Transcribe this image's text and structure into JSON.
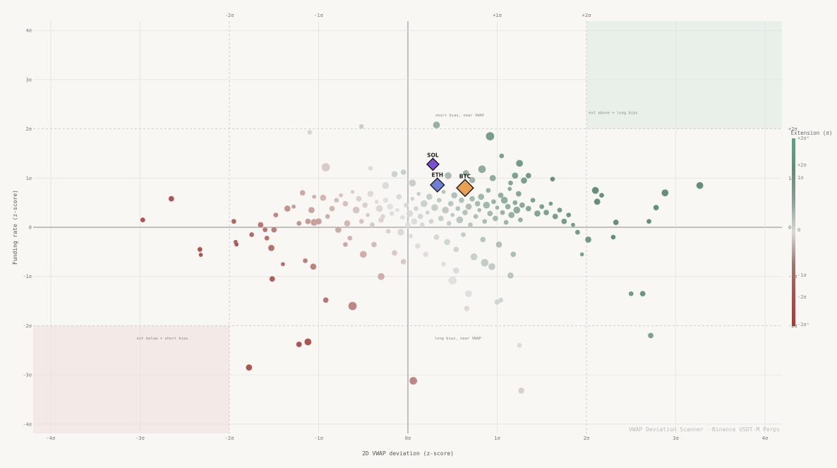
{
  "chart_data": {
    "type": "scatter",
    "xlabel": "2D VWAP deviation (z-score)",
    "ylabel": "Funding rate (z-score)",
    "xlim": [
      -4.2,
      4.2
    ],
    "ylim": [
      -4.2,
      4.2
    ],
    "grid": true,
    "x_tick_labels": [
      "-4σ",
      "-3σ",
      "-2σ",
      "-1σ",
      "0σ",
      "1σ",
      "2σ",
      "3σ",
      "4σ"
    ],
    "y_tick_labels": [
      "4σ",
      "3σ",
      "2σ",
      "1σ",
      "0",
      "-1σ",
      "-2σ",
      "-3σ",
      "-4σ"
    ],
    "top_tick_labels": [
      "-2σ",
      "-1σ",
      "+1σ",
      "+2σ"
    ],
    "right_tick_labels": [
      "+2σ",
      "1σ",
      "0",
      "-1σ",
      "-2σ"
    ],
    "zones": [
      {
        "label": "ext above + long bias",
        "x": [
          2.0,
          4.2
        ],
        "y": [
          2.0,
          4.2
        ],
        "color": "#e9f0ea"
      },
      {
        "label": "ext below + short bias",
        "x": [
          -4.2,
          -2.0
        ],
        "y": [
          -4.2,
          -2.0
        ],
        "color": "#f3e9e7"
      },
      {
        "label": "short bias, near VWAP",
        "x": [
          0.0,
          2.0
        ],
        "y": [
          2.0,
          4.2
        ],
        "color": null
      },
      {
        "label": "long bias, near VWAP",
        "x": [
          0.0,
          2.0
        ],
        "y": [
          -4.2,
          -2.0
        ],
        "color": null
      }
    ],
    "colorbar": {
      "title": "Extension (σ)",
      "labels": [
        "+2σ²",
        "+2σ",
        "1σ",
        "0",
        "-1σ",
        "-2σ",
        "-2σ²"
      ],
      "colors": [
        "#5aa684",
        "#5f8e78",
        "#8c9e96",
        "#d8d8d8",
        "#9a7a76",
        "#a84f4c",
        "#a83b34"
      ]
    },
    "highlights": [
      {
        "name": "SOL",
        "x": 0.28,
        "y": 1.28,
        "color": "#7d4fd6",
        "size": 1.0
      },
      {
        "name": "ETH",
        "x": 0.33,
        "y": 0.86,
        "color": "#6f7ed8",
        "size": 1.15
      },
      {
        "name": "BTC",
        "x": 0.64,
        "y": 0.8,
        "color": "#e9a050",
        "size": 1.4
      }
    ],
    "points": [
      {
        "x": -2.97,
        "y": 0.15,
        "s": 3.5
      },
      {
        "x": -2.65,
        "y": 0.58,
        "s": 4
      },
      {
        "x": -2.33,
        "y": -0.45,
        "s": 3.5
      },
      {
        "x": -2.32,
        "y": -0.56,
        "s": 3
      },
      {
        "x": -1.95,
        "y": 0.12,
        "s": 3.5
      },
      {
        "x": -1.93,
        "y": -0.3,
        "s": 3
      },
      {
        "x": -1.92,
        "y": -0.35,
        "s": 3
      },
      {
        "x": -1.75,
        "y": -0.15,
        "s": 3.5
      },
      {
        "x": -1.78,
        "y": -2.85,
        "s": 4.5
      },
      {
        "x": -1.65,
        "y": 0.05,
        "s": 4
      },
      {
        "x": -1.58,
        "y": -0.22,
        "s": 3.5
      },
      {
        "x": -1.53,
        "y": -0.42,
        "s": 4.5
      },
      {
        "x": -1.5,
        "y": -0.05,
        "s": 4
      },
      {
        "x": -1.52,
        "y": -1.05,
        "s": 4
      },
      {
        "x": -1.48,
        "y": 0.25,
        "s": 3.5
      },
      {
        "x": -1.4,
        "y": -0.75,
        "s": 3
      },
      {
        "x": -1.35,
        "y": 0.38,
        "s": 4.5
      },
      {
        "x": -1.28,
        "y": 0.42,
        "s": 3
      },
      {
        "x": -1.22,
        "y": 0.08,
        "s": 3.5
      },
      {
        "x": -1.18,
        "y": 0.7,
        "s": 4
      },
      {
        "x": -1.15,
        "y": -0.68,
        "s": 3.5
      },
      {
        "x": -1.12,
        "y": 0.12,
        "s": 4
      },
      {
        "x": -1.08,
        "y": 0.35,
        "s": 4.5
      },
      {
        "x": -1.05,
        "y": 0.62,
        "s": 3
      },
      {
        "x": -1.05,
        "y": 0.1,
        "s": 5
      },
      {
        "x": -1.0,
        "y": 0.12,
        "s": 4.5
      },
      {
        "x": -1.06,
        "y": -0.8,
        "s": 4.5
      },
      {
        "x": -1.1,
        "y": 1.93,
        "s": 3.5
      },
      {
        "x": -1.12,
        "y": -2.33,
        "s": 5
      },
      {
        "x": -1.22,
        "y": -2.38,
        "s": 4
      },
      {
        "x": -0.92,
        "y": 1.22,
        "s": 6
      },
      {
        "x": -0.95,
        "y": 0.6,
        "s": 4.5
      },
      {
        "x": -0.9,
        "y": 0.22,
        "s": 3.5
      },
      {
        "x": -0.85,
        "y": 0.38,
        "s": 4
      },
      {
        "x": -0.8,
        "y": 0.55,
        "s": 3.5
      },
      {
        "x": -0.78,
        "y": -0.05,
        "s": 4.5
      },
      {
        "x": -0.75,
        "y": 0.65,
        "s": 3
      },
      {
        "x": -0.7,
        "y": 0.48,
        "s": 4
      },
      {
        "x": -0.68,
        "y": 0.08,
        "s": 4.5
      },
      {
        "x": -0.65,
        "y": -0.22,
        "s": 3.5
      },
      {
        "x": -0.62,
        "y": 0.72,
        "s": 3
      },
      {
        "x": -0.58,
        "y": 0.35,
        "s": 5
      },
      {
        "x": -0.55,
        "y": 0.58,
        "s": 4
      },
      {
        "x": -0.52,
        "y": 0.12,
        "s": 3.5
      },
      {
        "x": -0.5,
        "y": -0.55,
        "s": 5
      },
      {
        "x": -0.48,
        "y": 0.45,
        "s": 4
      },
      {
        "x": -0.45,
        "y": 0.25,
        "s": 3
      },
      {
        "x": -0.42,
        "y": 0.68,
        "s": 4.5
      },
      {
        "x": -0.4,
        "y": 0.05,
        "s": 3.5
      },
      {
        "x": -0.38,
        "y": -0.35,
        "s": 4
      },
      {
        "x": -0.35,
        "y": 0.52,
        "s": 3
      },
      {
        "x": -0.32,
        "y": 0.38,
        "s": 5
      },
      {
        "x": -0.3,
        "y": 0.15,
        "s": 4
      },
      {
        "x": -0.28,
        "y": 0.22,
        "s": 3.5
      },
      {
        "x": -0.25,
        "y": 0.55,
        "s": 4
      },
      {
        "x": -0.22,
        "y": -0.08,
        "s": 3.5
      },
      {
        "x": -0.2,
        "y": 0.42,
        "s": 4.5
      },
      {
        "x": -0.18,
        "y": 0.28,
        "s": 3.5
      },
      {
        "x": -0.15,
        "y": -0.52,
        "s": 4
      },
      {
        "x": -0.12,
        "y": 0.35,
        "s": 3
      },
      {
        "x": -0.1,
        "y": 0.62,
        "s": 4
      },
      {
        "x": -0.08,
        "y": -0.1,
        "s": 5
      },
      {
        "x": -0.06,
        "y": 0.2,
        "s": 3.5
      },
      {
        "x": -0.05,
        "y": -0.7,
        "s": 4
      },
      {
        "x": -0.02,
        "y": 0.45,
        "s": 3.5
      },
      {
        "x": 0.0,
        "y": 0.05,
        "s": 4
      },
      {
        "x": 0.02,
        "y": 0.28,
        "s": 5
      },
      {
        "x": 0.03,
        "y": -0.18,
        "s": 3.5
      },
      {
        "x": 0.05,
        "y": 0.58,
        "s": 3
      },
      {
        "x": 0.07,
        "y": 0.12,
        "s": 4.5
      },
      {
        "x": 0.09,
        "y": 0.38,
        "s": 3.5
      },
      {
        "x": 0.11,
        "y": -0.38,
        "s": 4
      },
      {
        "x": 0.12,
        "y": 0.68,
        "s": 3
      },
      {
        "x": 0.14,
        "y": 0.22,
        "s": 4
      },
      {
        "x": 0.16,
        "y": 0.05,
        "s": 3.5
      },
      {
        "x": 0.18,
        "y": 0.48,
        "s": 5
      },
      {
        "x": 0.2,
        "y": -0.55,
        "s": 4
      },
      {
        "x": 0.22,
        "y": 0.3,
        "s": 3
      },
      {
        "x": 0.24,
        "y": 0.62,
        "s": 4.5
      },
      {
        "x": 0.26,
        "y": 0.12,
        "s": 3.5
      },
      {
        "x": 0.3,
        "y": 0.4,
        "s": 5
      },
      {
        "x": 0.32,
        "y": -0.2,
        "s": 4
      },
      {
        "x": 0.35,
        "y": 0.55,
        "s": 3.5
      },
      {
        "x": 0.37,
        "y": 0.18,
        "s": 4
      },
      {
        "x": 0.4,
        "y": 0.72,
        "s": 3
      },
      {
        "x": 0.42,
        "y": 0.35,
        "s": 5
      },
      {
        "x": 0.44,
        "y": -0.3,
        "s": 4.5
      },
      {
        "x": 0.46,
        "y": 0.08,
        "s": 3.5
      },
      {
        "x": 0.48,
        "y": 0.48,
        "s": 4
      },
      {
        "x": 0.5,
        "y": 0.25,
        "s": 3
      },
      {
        "x": 0.52,
        "y": 0.65,
        "s": 4.5
      },
      {
        "x": 0.54,
        "y": -0.45,
        "s": 4
      },
      {
        "x": 0.56,
        "y": 0.38,
        "s": 3.5
      },
      {
        "x": 0.58,
        "y": 0.15,
        "s": 5
      },
      {
        "x": 0.6,
        "y": 0.55,
        "s": 4
      },
      {
        "x": 0.62,
        "y": -0.15,
        "s": 3.5
      },
      {
        "x": 0.64,
        "y": 0.3,
        "s": 4
      },
      {
        "x": 0.66,
        "y": 0.7,
        "s": 3
      },
      {
        "x": 0.68,
        "y": 0.42,
        "s": 4.5
      },
      {
        "x": 0.7,
        "y": 0.05,
        "s": 3.5
      },
      {
        "x": 0.72,
        "y": 0.58,
        "s": 4
      },
      {
        "x": 0.74,
        "y": -0.6,
        "s": 5
      },
      {
        "x": 0.76,
        "y": 0.22,
        "s": 3.5
      },
      {
        "x": 0.78,
        "y": 0.48,
        "s": 4
      },
      {
        "x": 0.8,
        "y": 0.35,
        "s": 3
      },
      {
        "x": 0.82,
        "y": 0.62,
        "s": 4.5
      },
      {
        "x": 0.84,
        "y": -0.25,
        "s": 4
      },
      {
        "x": 0.86,
        "y": 0.12,
        "s": 3.5
      },
      {
        "x": 0.88,
        "y": 0.45,
        "s": 5
      },
      {
        "x": 0.9,
        "y": 0.75,
        "s": 3.5
      },
      {
        "x": 0.92,
        "y": 0.28,
        "s": 4
      },
      {
        "x": 0.94,
        "y": -0.8,
        "s": 5
      },
      {
        "x": 0.96,
        "y": 0.52,
        "s": 3.5
      },
      {
        "x": 0.98,
        "y": 0.18,
        "s": 4
      },
      {
        "x": 1.0,
        "y": 0.4,
        "s": 3
      },
      {
        "x": 1.02,
        "y": -0.35,
        "s": 4.5
      },
      {
        "x": 1.04,
        "y": 0.65,
        "s": 4
      },
      {
        "x": 1.06,
        "y": 0.3,
        "s": 3.5
      },
      {
        "x": 1.08,
        "y": 0.55,
        "s": 5
      },
      {
        "x": 1.1,
        "y": 0.1,
        "s": 3.5
      },
      {
        "x": 1.12,
        "y": 0.42,
        "s": 4
      },
      {
        "x": 1.14,
        "y": 0.78,
        "s": 3
      },
      {
        "x": 1.16,
        "y": 0.25,
        "s": 4.5
      },
      {
        "x": 1.18,
        "y": -0.55,
        "s": 4
      },
      {
        "x": 1.2,
        "y": 0.5,
        "s": 3.5
      },
      {
        "x": 1.22,
        "y": 0.35,
        "s": 5
      },
      {
        "x": 1.24,
        "y": 0.68,
        "s": 4
      },
      {
        "x": 1.26,
        "y": 0.15,
        "s": 3.5
      },
      {
        "x": 1.28,
        "y": 0.45,
        "s": 4
      },
      {
        "x": 1.3,
        "y": 0.95,
        "s": 4.5
      },
      {
        "x": 1.35,
        "y": 0.38,
        "s": 4
      },
      {
        "x": 1.4,
        "y": 0.55,
        "s": 3.5
      },
      {
        "x": 1.45,
        "y": 0.28,
        "s": 4.5
      },
      {
        "x": 1.5,
        "y": 0.42,
        "s": 3.5
      },
      {
        "x": 1.55,
        "y": 0.3,
        "s": 4
      },
      {
        "x": 1.6,
        "y": 0.48,
        "s": 3
      },
      {
        "x": 1.65,
        "y": 0.22,
        "s": 4
      },
      {
        "x": 1.7,
        "y": 0.35,
        "s": 3.5
      },
      {
        "x": 1.75,
        "y": 0.12,
        "s": 4
      },
      {
        "x": 1.8,
        "y": 0.25,
        "s": 3.5
      },
      {
        "x": 1.85,
        "y": 0.05,
        "s": 3
      },
      {
        "x": 1.9,
        "y": -0.1,
        "s": 3.5
      },
      {
        "x": 1.95,
        "y": -0.55,
        "s": 3
      },
      {
        "x": 2.02,
        "y": -0.25,
        "s": 4.5
      },
      {
        "x": 2.1,
        "y": 0.75,
        "s": 5
      },
      {
        "x": 2.12,
        "y": 0.52,
        "s": 4.5
      },
      {
        "x": 2.17,
        "y": 0.65,
        "s": 3.5
      },
      {
        "x": 2.3,
        "y": -0.2,
        "s": 3.5
      },
      {
        "x": 2.33,
        "y": 0.1,
        "s": 4
      },
      {
        "x": 2.5,
        "y": -1.35,
        "s": 3.5
      },
      {
        "x": 2.63,
        "y": -1.35,
        "s": 4
      },
      {
        "x": 2.7,
        "y": 0.12,
        "s": 3.5
      },
      {
        "x": 2.78,
        "y": 0.4,
        "s": 4
      },
      {
        "x": 2.88,
        "y": 0.7,
        "s": 5
      },
      {
        "x": 3.27,
        "y": 0.85,
        "s": 5
      },
      {
        "x": 2.72,
        "y": -2.2,
        "s": 4
      },
      {
        "x": 0.32,
        "y": 2.08,
        "s": 5
      },
      {
        "x": 0.92,
        "y": 1.85,
        "s": 6
      },
      {
        "x": -0.52,
        "y": 2.05,
        "s": 3.5
      },
      {
        "x": 1.05,
        "y": 1.45,
        "s": 3.5
      },
      {
        "x": 1.25,
        "y": 1.3,
        "s": 5
      },
      {
        "x": 0.83,
        "y": 1.18,
        "s": 5.5
      },
      {
        "x": 1.2,
        "y": 1.05,
        "s": 4.5
      },
      {
        "x": 1.35,
        "y": 1.05,
        "s": 4
      },
      {
        "x": 1.62,
        "y": 0.98,
        "s": 3.5
      },
      {
        "x": 0.65,
        "y": 1.1,
        "s": 4.5
      },
      {
        "x": -0.42,
        "y": 1.2,
        "s": 3.5
      },
      {
        "x": -0.15,
        "y": 1.08,
        "s": 4.5
      },
      {
        "x": -0.05,
        "y": 1.12,
        "s": 4
      },
      {
        "x": 0.45,
        "y": 1.05,
        "s": 5
      },
      {
        "x": 0.72,
        "y": 0.96,
        "s": 4.5
      },
      {
        "x": 0.05,
        "y": 0.9,
        "s": 5
      },
      {
        "x": -0.25,
        "y": 0.85,
        "s": 5
      },
      {
        "x": 0.95,
        "y": 1.0,
        "s": 4.5
      },
      {
        "x": 1.15,
        "y": 0.9,
        "s": 3.5
      },
      {
        "x": -0.62,
        "y": -1.6,
        "s": 6
      },
      {
        "x": -0.92,
        "y": -1.48,
        "s": 4
      },
      {
        "x": -0.3,
        "y": -1.0,
        "s": 5
      },
      {
        "x": 0.5,
        "y": -1.08,
        "s": 6
      },
      {
        "x": 0.68,
        "y": -1.35,
        "s": 5
      },
      {
        "x": 0.66,
        "y": -1.65,
        "s": 4
      },
      {
        "x": 1.0,
        "y": -1.52,
        "s": 4
      },
      {
        "x": 1.04,
        "y": -1.48,
        "s": 3.5
      },
      {
        "x": 1.15,
        "y": -0.98,
        "s": 4.5
      },
      {
        "x": 1.25,
        "y": -2.4,
        "s": 3.5
      },
      {
        "x": 0.06,
        "y": -3.12,
        "s": 5.5
      },
      {
        "x": 1.27,
        "y": -3.32,
        "s": 4.5
      },
      {
        "x": 0.54,
        "y": -0.88,
        "s": 4.5
      },
      {
        "x": 0.86,
        "y": -0.72,
        "s": 5.5
      },
      {
        "x": 0.4,
        "y": -0.75,
        "s": 3.5
      },
      {
        "x": -0.7,
        "y": -0.35,
        "s": 3.5
      },
      {
        "x": -1.6,
        "y": -0.05,
        "s": 3.5
      }
    ]
  },
  "watermark": {
    "left": "VWAP Deviation Scanner",
    "sep": "·",
    "right": "Binance USDT-M Perps"
  }
}
